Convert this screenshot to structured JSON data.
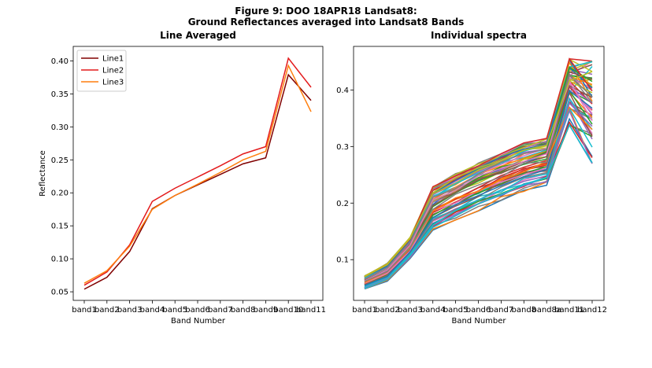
{
  "figure": {
    "title_line1": "Figure 9: DOO 18APR18  Landsat8:",
    "title_line2": "Ground Reflectances averaged into Landsat8 Bands"
  },
  "chart_data": [
    {
      "type": "line",
      "title": "Line Averaged",
      "xlabel": "Band Number",
      "ylabel": "Reflectance",
      "categories": [
        "band1",
        "band2",
        "band3",
        "band4",
        "band5",
        "band6",
        "band7",
        "band8",
        "band9",
        "band10",
        "band11"
      ],
      "ylim": [
        0.037,
        0.422
      ],
      "yticks": [
        0.05,
        0.1,
        0.15,
        0.2,
        0.25,
        0.3,
        0.35,
        0.4
      ],
      "legend": "upper left",
      "grid": false,
      "series": [
        {
          "name": "Line1",
          "color": "#800000",
          "values": [
            0.054,
            0.072,
            0.111,
            0.176,
            0.196,
            0.212,
            0.228,
            0.244,
            0.253,
            0.379,
            0.34
          ]
        },
        {
          "name": "Line2",
          "color": "#e31a1c",
          "values": [
            0.06,
            0.08,
            0.121,
            0.187,
            0.207,
            0.224,
            0.241,
            0.259,
            0.27,
            0.404,
            0.36
          ]
        },
        {
          "name": "Line3",
          "color": "#ff7f0e",
          "values": [
            0.063,
            0.082,
            0.119,
            0.175,
            0.196,
            0.213,
            0.231,
            0.25,
            0.263,
            0.393,
            0.323
          ]
        }
      ]
    },
    {
      "type": "line",
      "title": "Individual spectra",
      "xlabel": "Band Number",
      "ylabel": "",
      "categories": [
        "band1",
        "band2",
        "band3",
        "band4",
        "band5",
        "band6",
        "band7",
        "band8",
        "band8a",
        "band11",
        "band12"
      ],
      "ylim": [
        0.028,
        0.477
      ],
      "yticks": [
        0.1,
        0.2,
        0.3,
        0.4
      ],
      "grid": false,
      "series_count": 60,
      "envelope_low": [
        0.047,
        0.062,
        0.102,
        0.15,
        0.17,
        0.186,
        0.202,
        0.22,
        0.231,
        0.338,
        0.27
      ],
      "envelope_high": [
        0.072,
        0.094,
        0.14,
        0.229,
        0.252,
        0.272,
        0.291,
        0.307,
        0.316,
        0.455,
        0.451
      ],
      "colors": [
        "#1f77b4",
        "#ff7f0e",
        "#2ca02c",
        "#d62728",
        "#9467bd",
        "#8c564b",
        "#e377c2",
        "#7f7f7f",
        "#bcbd22",
        "#17becf"
      ]
    }
  ]
}
